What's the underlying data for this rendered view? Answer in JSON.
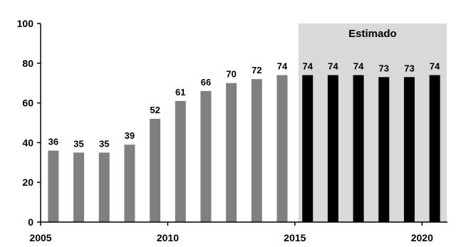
{
  "chart_data": {
    "type": "bar",
    "x": [
      2005,
      2006,
      2007,
      2008,
      2009,
      2010,
      2011,
      2012,
      2013,
      2014,
      2015,
      2016,
      2017,
      2018,
      2019,
      2020
    ],
    "values": [
      36,
      35,
      35,
      39,
      52,
      61,
      66,
      70,
      72,
      74,
      74,
      74,
      74,
      73,
      73,
      74
    ],
    "data_labels": [
      "36",
      "35",
      "35",
      "39",
      "52",
      "61",
      "66",
      "70",
      "72",
      "74",
      "74",
      "74",
      "74",
      "73",
      "73",
      "74"
    ],
    "title": "",
    "xlabel": "",
    "ylabel": "",
    "ylim": [
      0,
      100
    ],
    "y_ticks": [
      0,
      20,
      40,
      60,
      80,
      100
    ],
    "y_tick_labels": [
      "0",
      "20",
      "40",
      "60",
      "80",
      "100"
    ],
    "x_tick_labels": [
      {
        "x": 2005,
        "label": "2005"
      },
      {
        "x": 2010,
        "label": "2010"
      },
      {
        "x": 2015,
        "label": "2015"
      },
      {
        "x": 2020,
        "label": "2020"
      }
    ],
    "estimate_start_x": 2015,
    "shaded_region": {
      "from_x": 2015,
      "to_x": 2020,
      "label": "Estimado"
    },
    "grid": false,
    "legend": "none",
    "colors": {
      "historical": "#808080",
      "estimated": "#000000",
      "shade": "#d9d9d9",
      "axis": "#000000"
    }
  }
}
